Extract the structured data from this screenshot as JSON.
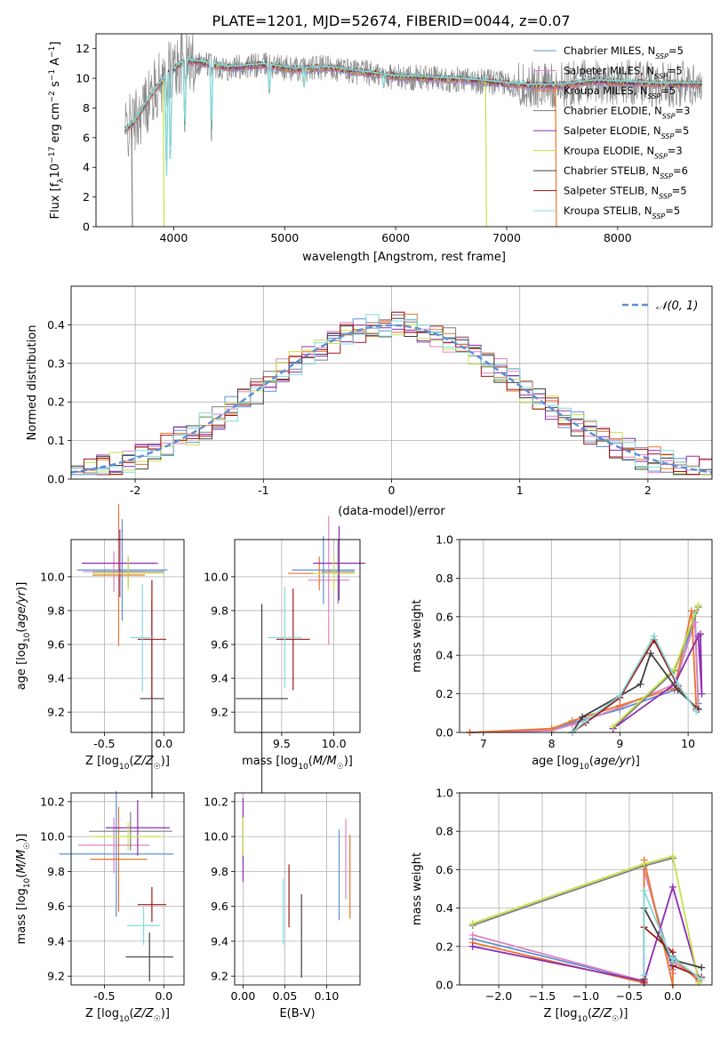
{
  "figure": {
    "title": "PLATE=1201, MJD=52674, FIBERID=0044, z=0.07"
  },
  "colors": {
    "Chabrier MILES": "#5b8fd6",
    "Salpeter MILES": "#e083c0",
    "Kroupa MILES": "#e8762c",
    "Chabrier ELODIE": "#7f7f7f",
    "Salpeter ELODIE": "#8e2bb0",
    "Kroupa ELODIE": "#c8e04a",
    "Chabrier STELIB": "#404040",
    "Salpeter STELIB": "#a01818",
    "Kroupa STELIB": "#86d9d9",
    "gaussian": "#5b8fd6",
    "grid": "#b0b0b0"
  },
  "chart_data": [
    {
      "id": "spectrum",
      "type": "line",
      "title": "PLATE=1201, MJD=52674, FIBERID=0044, z=0.07",
      "xlabel": "wavelength [Angstrom, rest frame]",
      "ylabel": "Flux [f_λ 10^-17 erg cm^-2 s^-1 A^-1]",
      "xlim": [
        3300,
        8850
      ],
      "ylim": [
        0,
        13
      ],
      "xticks": [
        "4000",
        "5000",
        "6000",
        "7000",
        "8000"
      ],
      "yticks": [
        "0",
        "2",
        "4",
        "6",
        "8",
        "10",
        "12"
      ],
      "grid": false,
      "legend_position": "right",
      "legend": [
        {
          "model": "Chabrier MILES",
          "label": "Chabrier MILES, N",
          "sub": "SSP",
          "tail": "=5"
        },
        {
          "model": "Salpeter MILES",
          "label": "Salpeter MILES, N",
          "sub": "SSP",
          "tail": "=5"
        },
        {
          "model": "Kroupa MILES",
          "label": "Kroupa MILES, N",
          "sub": "SSP",
          "tail": "=5"
        },
        {
          "model": "Chabrier ELODIE",
          "label": "Chabrier ELODIE, N",
          "sub": "SSP",
          "tail": "=3"
        },
        {
          "model": "Salpeter ELODIE",
          "label": "Salpeter ELODIE, N",
          "sub": "SSP",
          "tail": "=5"
        },
        {
          "model": "Kroupa ELODIE",
          "label": "Kroupa ELODIE, N",
          "sub": "SSP",
          "tail": "=3"
        },
        {
          "model": "Chabrier STELIB",
          "label": "Chabrier STELIB, N",
          "sub": "SSP",
          "tail": "=6"
        },
        {
          "model": "Salpeter STELIB",
          "label": "Salpeter STELIB, N",
          "sub": "SSP",
          "tail": "=5"
        },
        {
          "model": "Kroupa STELIB",
          "label": "Kroupa STELIB, N",
          "sub": "SSP",
          "tail": "=5"
        }
      ],
      "continuum": {
        "x": [
          3550,
          3650,
          3750,
          3850,
          3950,
          4100,
          4300,
          4500,
          4800,
          5100,
          5400,
          5700,
          6000,
          6300,
          6600,
          6900,
          7200,
          7500,
          7800,
          8100,
          8400,
          8700
        ],
        "y": [
          6.4,
          7.1,
          8.3,
          9.4,
          10.3,
          11.2,
          11.0,
          10.7,
          10.9,
          10.6,
          10.7,
          10.4,
          10.1,
          10.0,
          9.9,
          9.7,
          9.5,
          9.5,
          9.8,
          9.7,
          9.6,
          9.6
        ]
      },
      "features": {
        "drops": [
          {
            "series": "Chabrier ELODIE",
            "x": 3620,
            "y": 0
          },
          {
            "series": "Kroupa ELODIE",
            "x": 3905,
            "y": 0
          },
          {
            "series": "Kroupa ELODIE",
            "x": 6810,
            "y": 0
          },
          {
            "series": "Kroupa MILES",
            "x": 7440,
            "y": 0
          }
        ],
        "absorption": [
          {
            "x": 3935,
            "y": 2.9
          },
          {
            "x": 3970,
            "y": 3.6
          },
          {
            "x": 4101,
            "y": 6.0
          },
          {
            "x": 4340,
            "y": 5.8
          },
          {
            "x": 4861,
            "y": 8.8
          },
          {
            "x": 5175,
            "y": 9.3
          },
          {
            "x": 5892,
            "y": 9.2
          }
        ]
      }
    },
    {
      "id": "residuals",
      "type": "line",
      "xlabel": "(data-model)/error",
      "ylabel": "Normed distribution",
      "xlim": [
        -2.5,
        2.5
      ],
      "ylim": [
        0,
        0.5
      ],
      "xticks": [
        -2,
        -1,
        0,
        1,
        2
      ],
      "yticks": [
        0.0,
        0.1,
        0.2,
        0.3,
        0.4
      ],
      "grid": true,
      "legend_position": "top-right",
      "legend": [
        {
          "label": "𝒩(0, 1)",
          "series": "gaussian"
        }
      ],
      "bin_width": 0.1,
      "gaussian": {
        "mean": 0,
        "sigma": 1
      }
    },
    {
      "id": "age-vs-Z",
      "type": "scatter",
      "xlabel": "Z [log10(Z/Z☉)]",
      "ylabel": "age [log10(age/yr)]",
      "xlim": [
        -0.78,
        0.17
      ],
      "ylim": [
        9.08,
        10.22
      ],
      "xticks": [
        -0.5,
        0.0
      ],
      "yticks": [
        9.2,
        9.4,
        9.6,
        9.8,
        10.0
      ],
      "grid": true,
      "points": [
        {
          "series": "Chabrier MILES",
          "x": -0.35,
          "y": 10.04,
          "xerr": 0.38,
          "yerr": 0.3
        },
        {
          "series": "Salpeter MILES",
          "x": -0.42,
          "y": 10.03,
          "xerr": 0.26,
          "yerr": 0.12
        },
        {
          "series": "Kroupa MILES",
          "x": -0.38,
          "y": 10.01,
          "xerr": 0.22,
          "yerr": 0.42
        },
        {
          "series": "Chabrier ELODIE",
          "x": -0.3,
          "y": 10.03,
          "xerr": 0.3,
          "yerr": 0.09
        },
        {
          "series": "Salpeter ELODIE",
          "x": -0.37,
          "y": 10.08,
          "xerr": 0.32,
          "yerr": 0.2
        },
        {
          "series": "Kroupa ELODIE",
          "x": -0.3,
          "y": 10.02,
          "xerr": 0.3,
          "yerr": 0.1
        },
        {
          "series": "Chabrier STELIB",
          "x": -0.1,
          "y": 9.28,
          "xerr": 0.1,
          "yerr": 0.59
        },
        {
          "series": "Salpeter STELIB",
          "x": -0.1,
          "y": 9.63,
          "xerr": 0.12,
          "yerr": 0.35
        },
        {
          "series": "Kroupa STELIB",
          "x": -0.18,
          "y": 9.64,
          "xerr": 0.1,
          "yerr": 0.32
        }
      ]
    },
    {
      "id": "age-vs-mass",
      "type": "scatter",
      "xlabel": "mass [log10(M/M☉)]",
      "ylabel": "",
      "xlim": [
        9.05,
        10.25
      ],
      "ylim": [
        9.08,
        10.22
      ],
      "xticks": [
        9.5,
        10.0
      ],
      "yticks": [
        9.2,
        9.4,
        9.6,
        9.8,
        10.0
      ],
      "grid": true,
      "points": [
        {
          "series": "Chabrier MILES",
          "x": 9.9,
          "y": 10.04,
          "xerr": 0.3,
          "yerr": 0.2
        },
        {
          "series": "Salpeter MILES",
          "x": 9.95,
          "y": 9.98,
          "xerr": 0.2,
          "yerr": 0.38
        },
        {
          "series": "Kroupa MILES",
          "x": 9.86,
          "y": 10.02,
          "xerr": 0.3,
          "yerr": 0.1
        },
        {
          "series": "Chabrier ELODIE",
          "x": 10.04,
          "y": 10.03,
          "xerr": 0.16,
          "yerr": 0.19
        },
        {
          "series": "Salpeter ELODIE",
          "x": 10.05,
          "y": 10.08,
          "xerr": 0.25,
          "yerr": 0.22
        },
        {
          "series": "Kroupa ELODIE",
          "x": 10.0,
          "y": 10.02,
          "xerr": 0.2,
          "yerr": 0.1
        },
        {
          "series": "Chabrier STELIB",
          "x": 9.31,
          "y": 9.28,
          "xerr": 0.25,
          "yerr": 0.56
        },
        {
          "series": "Salpeter STELIB",
          "x": 9.61,
          "y": 9.63,
          "xerr": 0.16,
          "yerr": 0.3
        },
        {
          "series": "Kroupa STELIB",
          "x": 9.53,
          "y": 9.64,
          "xerr": 0.16,
          "yerr": 0.3
        }
      ]
    },
    {
      "id": "mass-weight-vs-age",
      "type": "line",
      "xlabel": "age [log10(age/yr)]",
      "ylabel": "mass weight",
      "xlim": [
        6.65,
        10.35
      ],
      "ylim": [
        0,
        1
      ],
      "xticks": [
        7,
        8,
        9,
        10
      ],
      "yticks": [
        0.0,
        0.2,
        0.4,
        0.6,
        0.8,
        1.0
      ],
      "grid": true,
      "series": [
        {
          "name": "Chabrier MILES",
          "x": [
            6.8,
            8.0,
            8.3,
            9.0,
            9.8,
            10.1,
            10.15
          ],
          "y": [
            0.0,
            0.01,
            0.05,
            0.12,
            0.22,
            0.62,
            0.15
          ]
        },
        {
          "name": "Salpeter MILES",
          "x": [
            6.8,
            8.0,
            8.3,
            9.0,
            9.8,
            10.1,
            10.15
          ],
          "y": [
            0.0,
            0.01,
            0.04,
            0.13,
            0.25,
            0.57,
            0.12
          ]
        },
        {
          "name": "Kroupa MILES",
          "x": [
            6.8,
            8.0,
            8.3,
            9.0,
            9.8,
            10.05,
            10.12
          ],
          "y": [
            0.0,
            0.02,
            0.06,
            0.14,
            0.23,
            0.63,
            0.13
          ]
        },
        {
          "name": "Chabrier ELODIE",
          "x": [
            8.9,
            9.8,
            10.15
          ],
          "y": [
            0.02,
            0.32,
            0.65
          ]
        },
        {
          "name": "Salpeter ELODIE",
          "x": [
            8.9,
            9.8,
            10.15,
            10.2,
            10.18
          ],
          "y": [
            0.02,
            0.25,
            0.5,
            0.2,
            0.51
          ]
        },
        {
          "name": "Kroupa ELODIE",
          "x": [
            8.9,
            9.8,
            10.15
          ],
          "y": [
            0.03,
            0.33,
            0.66
          ]
        },
        {
          "name": "Chabrier STELIB",
          "x": [
            8.3,
            8.45,
            9.3,
            9.45,
            9.85,
            10.15
          ],
          "y": [
            0.0,
            0.08,
            0.25,
            0.41,
            0.22,
            0.12
          ]
        },
        {
          "name": "Salpeter STELIB",
          "x": [
            8.3,
            8.5,
            9.0,
            9.5,
            9.85,
            10.12
          ],
          "y": [
            0.0,
            0.05,
            0.18,
            0.48,
            0.24,
            0.12
          ]
        },
        {
          "name": "Kroupa STELIB",
          "x": [
            8.3,
            8.5,
            9.0,
            9.5,
            9.85,
            10.12
          ],
          "y": [
            0.0,
            0.06,
            0.19,
            0.5,
            0.25,
            0.11
          ]
        }
      ]
    },
    {
      "id": "mass-vs-Z",
      "type": "scatter",
      "xlabel": "Z [log10(Z/Z☉)]",
      "ylabel": "mass [log10(M/M☉)]",
      "xlim": [
        -0.78,
        0.17
      ],
      "ylim": [
        9.15,
        10.25
      ],
      "xticks": [
        -0.5,
        0.0
      ],
      "yticks": [
        9.2,
        9.4,
        9.6,
        9.8,
        10.0,
        10.2
      ],
      "grid": true,
      "points": [
        {
          "series": "Chabrier MILES",
          "x": -0.4,
          "y": 9.9,
          "xerr": 0.48,
          "yerr": 0.36
        },
        {
          "series": "Salpeter MILES",
          "x": -0.42,
          "y": 9.95,
          "xerr": 0.3,
          "yerr": 0.16
        },
        {
          "series": "Kroupa MILES",
          "x": -0.38,
          "y": 9.87,
          "xerr": 0.24,
          "yerr": 0.3
        },
        {
          "series": "Chabrier ELODIE",
          "x": -0.28,
          "y": 10.03,
          "xerr": 0.35,
          "yerr": 0.11
        },
        {
          "series": "Salpeter ELODIE",
          "x": -0.22,
          "y": 10.05,
          "xerr": 0.27,
          "yerr": 0.16
        },
        {
          "series": "Kroupa ELODIE",
          "x": -0.3,
          "y": 10.0,
          "xerr": 0.3,
          "yerr": 0.08
        },
        {
          "series": "Chabrier STELIB",
          "x": -0.12,
          "y": 9.31,
          "xerr": 0.2,
          "yerr": 0.14
        },
        {
          "series": "Salpeter STELIB",
          "x": -0.1,
          "y": 9.61,
          "xerr": 0.12,
          "yerr": 0.1
        },
        {
          "series": "Kroupa STELIB",
          "x": -0.17,
          "y": 9.49,
          "xerr": 0.14,
          "yerr": 0.11
        }
      ]
    },
    {
      "id": "mass-vs-EBV",
      "type": "scatter",
      "xlabel": "E(B-V)",
      "ylabel": "",
      "xlim": [
        -0.01,
        0.14
      ],
      "ylim": [
        9.15,
        10.25
      ],
      "xticks": [
        0.0,
        0.05,
        0.1
      ],
      "yticks": [
        9.2,
        9.4,
        9.6,
        9.8,
        10.0,
        10.2
      ],
      "grid": true,
      "points": [
        {
          "series": "Chabrier MILES",
          "x": 0.115,
          "y": 9.78,
          "yerr": 0.26
        },
        {
          "series": "Salpeter MILES",
          "x": 0.123,
          "y": 9.87,
          "yerr": 0.23
        },
        {
          "series": "Kroupa MILES",
          "x": 0.128,
          "y": 9.77,
          "yerr": 0.24
        },
        {
          "series": "Chabrier ELODIE",
          "x": 0.0,
          "y": 10.0,
          "yerr": 0.12
        },
        {
          "series": "Salpeter ELODIE",
          "x": 0.0,
          "y": 9.98,
          "yerr": 0.24
        },
        {
          "series": "Kroupa ELODIE",
          "x": 0.0,
          "y": 10.0,
          "yerr": 0.11
        },
        {
          "series": "Chabrier STELIB",
          "x": 0.07,
          "y": 9.43,
          "yerr": 0.24
        },
        {
          "series": "Salpeter STELIB",
          "x": 0.055,
          "y": 9.66,
          "yerr": 0.18
        },
        {
          "series": "Kroupa STELIB",
          "x": 0.048,
          "y": 9.57,
          "yerr": 0.19
        }
      ]
    },
    {
      "id": "mass-weight-vs-Z",
      "type": "line",
      "xlabel": "Z [log10(Z/Z☉)]",
      "ylabel": "mass weight",
      "xlim": [
        -2.45,
        0.45
      ],
      "ylim": [
        0,
        1
      ],
      "xticks": [
        -2.0,
        -1.5,
        -1.0,
        -0.5,
        0.0
      ],
      "yticks": [
        0.0,
        0.2,
        0.4,
        0.6,
        0.8,
        1.0
      ],
      "grid": true,
      "series": [
        {
          "name": "Chabrier MILES",
          "x": [
            -2.3,
            -0.33,
            -0.33,
            0.0,
            0.0,
            0.3
          ],
          "y": [
            0.24,
            0.02,
            0.6,
            0.08,
            0.15,
            0.02
          ]
        },
        {
          "name": "Salpeter MILES",
          "x": [
            -2.3,
            -0.33,
            -0.33,
            0.0,
            0.0,
            0.3
          ],
          "y": [
            0.26,
            0.02,
            0.6,
            0.06,
            0.12,
            0.03
          ]
        },
        {
          "name": "Kroupa MILES",
          "x": [
            -2.3,
            -0.33,
            -0.33,
            0.0,
            0.0,
            0.3
          ],
          "y": [
            0.22,
            0.01,
            0.65,
            0.0,
            0.14,
            0.02
          ]
        },
        {
          "name": "Chabrier ELODIE",
          "x": [
            -2.3,
            -0.33,
            0.0
          ],
          "y": [
            0.31,
            0.62,
            0.66
          ]
        },
        {
          "name": "Salpeter ELODIE",
          "x": [
            -2.3,
            -0.33,
            0.0,
            0.3
          ],
          "y": [
            0.2,
            0.02,
            0.51,
            0.03
          ]
        },
        {
          "name": "Kroupa ELODIE",
          "x": [
            -2.3,
            -0.33,
            0.0,
            0.3
          ],
          "y": [
            0.32,
            0.63,
            0.67,
            0.01
          ]
        },
        {
          "name": "Chabrier STELIB",
          "x": [
            -0.33,
            -0.33,
            0.0,
            0.0,
            0.33
          ],
          "y": [
            0.03,
            0.4,
            0.12,
            0.13,
            0.09
          ]
        },
        {
          "name": "Salpeter STELIB",
          "x": [
            -0.33,
            -0.33,
            0.0,
            0.0,
            0.33
          ],
          "y": [
            0.01,
            0.3,
            0.17,
            0.1,
            0.04
          ]
        },
        {
          "name": "Kroupa STELIB",
          "x": [
            -0.33,
            -0.33,
            0.0,
            0.0,
            0.33
          ],
          "y": [
            0.05,
            0.49,
            0.12,
            0.14,
            0.03
          ]
        }
      ]
    }
  ]
}
